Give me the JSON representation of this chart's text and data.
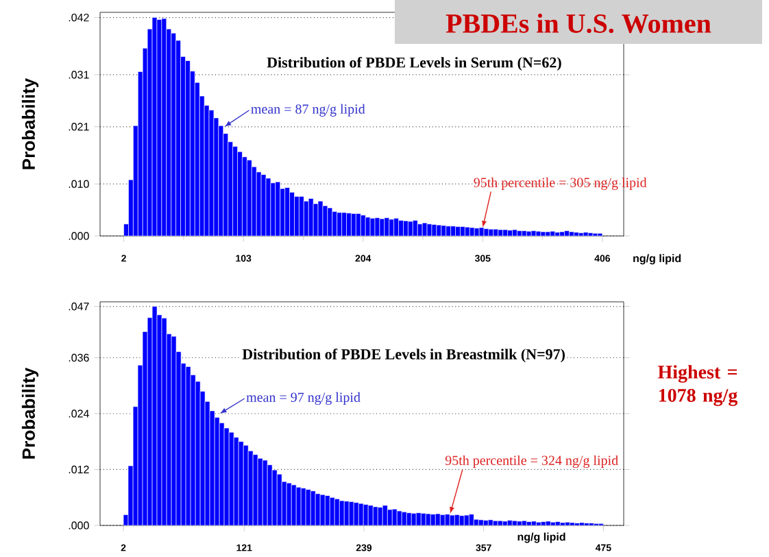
{
  "chart_data": [
    {
      "type": "histogram",
      "title": "Distribution of PBDE Levels in Serum (N=62)",
      "xlabel": "ng/g lipid",
      "ylabel": "Probability",
      "color": "#0000ff",
      "grid": "y",
      "xlim": [
        -18,
        424
      ],
      "ylim": [
        0,
        0.043
      ],
      "xticks": [
        2,
        103,
        204,
        305,
        406
      ],
      "yticks": [
        {
          "value": 0,
          "label": ".000"
        },
        {
          "value": 0.01,
          "label": ".010"
        },
        {
          "value": 0.021,
          "label": ".021"
        },
        {
          "value": 0.031,
          "label": ".031"
        },
        {
          "value": 0.042,
          "label": ".042"
        }
      ],
      "bins": [
        2,
        6,
        10,
        14,
        18,
        22,
        26,
        30,
        34,
        38,
        42,
        46,
        50,
        54,
        58,
        62,
        66,
        70,
        74,
        78,
        82,
        86,
        90,
        94,
        98,
        102,
        106,
        110,
        114,
        118,
        122,
        126,
        130,
        134,
        138,
        142,
        146,
        150,
        154,
        158,
        162,
        166,
        170,
        174,
        178,
        182,
        186,
        190,
        194,
        198,
        202,
        206,
        210,
        214,
        218,
        222,
        226,
        230,
        234,
        238,
        242,
        246,
        250,
        254,
        258,
        262,
        266,
        270,
        274,
        278,
        282,
        286,
        290,
        294,
        298,
        302,
        306,
        310,
        314,
        318,
        322,
        326,
        330,
        334,
        338,
        342,
        346,
        350,
        354,
        358,
        362,
        366,
        370,
        374,
        378,
        382,
        386,
        390,
        394,
        398,
        402,
        406
      ],
      "values": [
        0.0023,
        0.0108,
        0.0212,
        0.0316,
        0.0361,
        0.0398,
        0.042,
        0.0416,
        0.0418,
        0.0398,
        0.039,
        0.0376,
        0.0345,
        0.0337,
        0.0317,
        0.0295,
        0.0269,
        0.0251,
        0.0242,
        0.0227,
        0.0212,
        0.0197,
        0.0181,
        0.0172,
        0.0162,
        0.0152,
        0.0146,
        0.0133,
        0.0123,
        0.0118,
        0.0111,
        0.0102,
        0.0104,
        0.0091,
        0.0093,
        0.0084,
        0.0076,
        0.0076,
        0.0067,
        0.0072,
        0.0062,
        0.0067,
        0.0058,
        0.0054,
        0.0047,
        0.0045,
        0.0045,
        0.0044,
        0.0043,
        0.0043,
        0.004,
        0.0036,
        0.0034,
        0.0035,
        0.0033,
        0.0035,
        0.0032,
        0.0034,
        0.003,
        0.0029,
        0.0028,
        0.003,
        0.0023,
        0.0025,
        0.0023,
        0.0022,
        0.0021,
        0.002,
        0.0019,
        0.0019,
        0.0018,
        0.0018,
        0.0017,
        0.0016,
        0.0015,
        0.0016,
        0.0014,
        0.0013,
        0.0013,
        0.0012,
        0.0012,
        0.0011,
        0.0012,
        0.001,
        0.001,
        0.0009,
        0.001,
        0.0009,
        0.0008,
        0.0008,
        0.0009,
        0.0007,
        0.0008,
        0.001,
        0.0008,
        0.0007,
        0.0006,
        0.0007,
        0.0006,
        0.0005,
        0.0005
      ],
      "annotations": [
        "PBDEs in U.S. Women",
        {
          "text": "mean = 87 ng/g lipid",
          "x": 87,
          "y": 0.021
        },
        {
          "text": "95th percentile = 305 ng/g lipid",
          "x": 305,
          "y": 0.0016
        }
      ]
    },
    {
      "type": "histogram",
      "title": "Distribution of PBDE Levels in Breastmilk (N=97)",
      "xlabel": "ng/g lipid",
      "ylabel": "Probability",
      "color": "#0000ff",
      "grid": "y",
      "xlim": [
        -21,
        495
      ],
      "ylim": [
        0,
        0.048
      ],
      "xticks": [
        2,
        121,
        239,
        357,
        475
      ],
      "yticks": [
        {
          "value": 0,
          "label": ".000"
        },
        {
          "value": 0.012,
          "label": ".012"
        },
        {
          "value": 0.024,
          "label": ".024"
        },
        {
          "value": 0.036,
          "label": ".036"
        },
        {
          "value": 0.047,
          "label": ".047"
        }
      ],
      "bins": [
        2.0,
        6.7,
        11.5,
        16.2,
        20.9,
        25.7,
        30.4,
        35.1,
        39.8,
        44.6,
        49.3,
        54.0,
        58.8,
        63.5,
        68.2,
        73.0,
        77.7,
        82.4,
        87.1,
        91.9,
        96.6,
        101.3,
        106.1,
        110.8,
        115.5,
        120.3,
        125.0,
        129.7,
        134.4,
        139.2,
        143.9,
        148.6,
        153.4,
        158.1,
        162.8,
        167.6,
        172.3,
        177.0,
        181.7,
        186.5,
        191.2,
        195.9,
        200.7,
        205.4,
        210.1,
        214.9,
        219.6,
        224.3,
        229.0,
        233.8,
        238.5,
        243.2,
        248.0,
        252.7,
        257.4,
        262.2,
        266.9,
        271.6,
        276.3,
        281.1,
        285.8,
        290.5,
        295.3,
        300.0,
        304.7,
        309.5,
        314.2,
        318.9,
        323.6,
        328.4,
        333.1,
        337.8,
        342.6,
        347.3,
        352.0,
        356.8,
        361.5,
        366.2,
        370.9,
        375.7,
        380.4,
        385.1,
        389.9,
        394.6,
        399.3,
        404.1,
        408.8,
        413.5,
        418.2,
        423.0,
        427.7,
        432.4,
        437.2,
        441.9,
        446.6,
        451.4,
        456.1,
        460.8,
        465.5,
        470.3,
        475.0
      ],
      "values": [
        0.0023,
        0.0128,
        0.0255,
        0.0344,
        0.0416,
        0.0446,
        0.047,
        0.0452,
        0.0445,
        0.0411,
        0.0406,
        0.0373,
        0.0348,
        0.0341,
        0.0323,
        0.0309,
        0.0288,
        0.0266,
        0.0246,
        0.0232,
        0.022,
        0.0209,
        0.02,
        0.0189,
        0.018,
        0.0172,
        0.016,
        0.0152,
        0.0144,
        0.014,
        0.013,
        0.0119,
        0.011,
        0.0094,
        0.0091,
        0.0087,
        0.0082,
        0.008,
        0.0077,
        0.0074,
        0.0068,
        0.0066,
        0.0064,
        0.006,
        0.0057,
        0.0053,
        0.0052,
        0.0051,
        0.0049,
        0.0047,
        0.0045,
        0.0043,
        0.004,
        0.0039,
        0.0043,
        0.0034,
        0.0035,
        0.0031,
        0.0029,
        0.0027,
        0.0026,
        0.0027,
        0.0026,
        0.0025,
        0.0024,
        0.0025,
        0.0023,
        0.0024,
        0.0022,
        0.0023,
        0.0021,
        0.0022,
        0.0024,
        0.0013,
        0.0012,
        0.0011,
        0.0012,
        0.001,
        0.001,
        0.0009,
        0.0011,
        0.001,
        0.0009,
        0.001,
        0.0008,
        0.0009,
        0.0007,
        0.0008,
        0.0009,
        0.0007,
        0.0008,
        0.0006,
        0.0007,
        0.0006,
        0.0005,
        0.0006,
        0.0005,
        0.0005,
        0.0004,
        0.0004
      ],
      "annotations": [
        {
          "text": "mean = 97 ng/g lipid",
          "x": 97,
          "y": 0.024
        },
        {
          "text": "95th percentile = 324 ng/g lipid",
          "x": 324,
          "y": 0.0025
        },
        "Highest = 1078 ng/g"
      ]
    }
  ]
}
